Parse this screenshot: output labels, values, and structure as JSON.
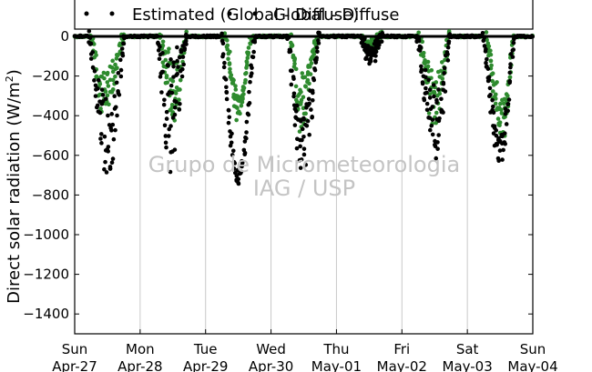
{
  "chart_data": {
    "type": "scatter",
    "title": "",
    "xlabel": "",
    "ylabel": "Direct solar radiation (W/m²)",
    "ylabel_main": "Direct solar radiation (W/m",
    "ylabel_sup": "2",
    "ylabel_close": ")",
    "ylim": [
      -1500,
      0
    ],
    "yticks": [
      0,
      -200,
      -400,
      -600,
      -800,
      -1000,
      -1200,
      -1400
    ],
    "xlim": [
      0,
      7
    ],
    "grid": true,
    "legend_position": "top",
    "xticks": [
      {
        "day": "Sun",
        "date": "Apr-27"
      },
      {
        "day": "Mon",
        "date": "Apr-28"
      },
      {
        "day": "Tue",
        "date": "Apr-29"
      },
      {
        "day": "Wed",
        "date": "Apr-30"
      },
      {
        "day": "Thu",
        "date": "May-01"
      },
      {
        "day": "Fri",
        "date": "May-02"
      },
      {
        "day": "Sat",
        "date": "May-03"
      },
      {
        "day": "Sun",
        "date": "May-04"
      }
    ],
    "series": [
      {
        "name": "Estimated (Global - Diffuse)",
        "color": "#000000",
        "days": [
          {
            "day": 0,
            "start": 0.22,
            "end": 0.76,
            "peak_hour": 0.52,
            "peak": -740,
            "spread": 0.55
          },
          {
            "day": 1,
            "start": 0.26,
            "end": 0.72,
            "peak_hour": 0.45,
            "peak": -690,
            "spread": 0.85
          },
          {
            "day": 2,
            "start": 0.24,
            "end": 0.75,
            "peak_hour": 0.5,
            "peak": -730,
            "spread": 0.05
          },
          {
            "day": 3,
            "start": 0.25,
            "end": 0.74,
            "peak_hour": 0.48,
            "peak": -700,
            "spread": 0.45
          },
          {
            "day": 4,
            "start": 0.38,
            "end": 0.7,
            "peak_hour": 0.5,
            "peak": -140,
            "spread": 0.6
          },
          {
            "day": 5,
            "start": 0.23,
            "end": 0.73,
            "peak_hour": 0.52,
            "peak": -660,
            "spread": 0.6
          },
          {
            "day": 6,
            "start": 0.24,
            "end": 0.72,
            "peak_hour": 0.5,
            "peak": -650,
            "spread": 0.25
          }
        ]
      },
      {
        "name": "Global - Diffuse",
        "color": "#2e8b2e",
        "days": [
          {
            "day": 0,
            "start": 0.26,
            "end": 0.74,
            "peak_hour": 0.45,
            "peak": -450,
            "spread": 0.6
          },
          {
            "day": 1,
            "start": 0.3,
            "end": 0.7,
            "peak_hour": 0.55,
            "peak": -480,
            "spread": 0.8
          },
          {
            "day": 2,
            "start": 0.3,
            "end": 0.7,
            "peak_hour": 0.5,
            "peak": -420,
            "spread": 0.3
          },
          {
            "day": 3,
            "start": 0.3,
            "end": 0.7,
            "peak_hour": 0.45,
            "peak": -480,
            "spread": 0.6
          },
          {
            "day": 4,
            "start": 0.4,
            "end": 0.68,
            "peak_hour": 0.5,
            "peak": -90,
            "spread": 0.6
          },
          {
            "day": 5,
            "start": 0.26,
            "end": 0.72,
            "peak_hour": 0.5,
            "peak": -470,
            "spread": 0.6
          },
          {
            "day": 6,
            "start": 0.28,
            "end": 0.7,
            "peak_hour": 0.55,
            "peak": -520,
            "spread": 0.4
          }
        ]
      }
    ],
    "legend": {
      "entries": [
        "Estimated (Global - Diffuse)",
        "Global - Diffuse"
      ]
    },
    "watermark": {
      "line1": "Grupo de Micrometeorologia",
      "line2": "IAG / USP"
    }
  }
}
